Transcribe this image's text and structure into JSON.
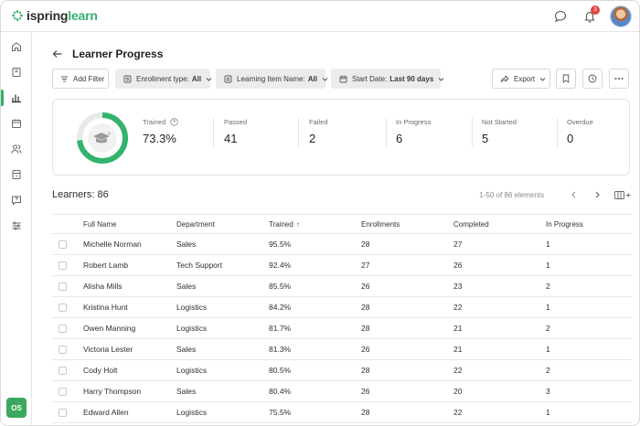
{
  "app": {
    "logo_part1": "ispring",
    "logo_part2": "learn",
    "notification_count": "3",
    "user_initials": "OS"
  },
  "page": {
    "title": "Learner Progress"
  },
  "filters": {
    "add_filter": "Add Filter",
    "enrollment_label": "Enrollment type:",
    "enrollment_value": "All",
    "learning_item_label": "Learning Item Name:",
    "learning_item_value": "All",
    "start_date_label": "Start Date:",
    "start_date_value": "Last 90 days",
    "export_label": "Export"
  },
  "stats": {
    "trained_label": "Trained",
    "trained_value": "73.3%",
    "trained_fraction": 0.733,
    "passed_label": "Passed",
    "passed_value": "41",
    "failed_label": "Failed",
    "failed_value": "2",
    "in_progress_label": "In Progress",
    "in_progress_value": "6",
    "not_started_label": "Not Started",
    "not_started_value": "5",
    "overdue_label": "Overdue",
    "overdue_value": "0"
  },
  "learners": {
    "title": "Learners: 86",
    "pagination": "1-50 of 86 elements"
  },
  "table": {
    "columns": [
      "Full Name",
      "Department",
      "Trained",
      "Enrollments",
      "Completed",
      "In Progress"
    ],
    "sort_indicator": "↑",
    "rows": [
      [
        "Michelle Norman",
        "Sales",
        "95.5%",
        "28",
        "27",
        "1"
      ],
      [
        "Robert Lamb",
        "Tech Support",
        "92.4%",
        "27",
        "26",
        "1"
      ],
      [
        "Alisha Mills",
        "Sales",
        "85.5%",
        "26",
        "23",
        "2"
      ],
      [
        "Kristina Hunt",
        "Logistics",
        "84.2%",
        "28",
        "22",
        "1"
      ],
      [
        "Owen Manning",
        "Logistics",
        "81.7%",
        "28",
        "21",
        "2"
      ],
      [
        "Victoria Lester",
        "Sales",
        "81.3%",
        "26",
        "21",
        "1"
      ],
      [
        "Cody Holt",
        "Logistics",
        "80.5%",
        "28",
        "22",
        "2"
      ],
      [
        "Harry Thompson",
        "Sales",
        "80.4%",
        "26",
        "20",
        "3"
      ],
      [
        "Edward Allen",
        "Logistics",
        "75.5%",
        "28",
        "22",
        "1"
      ]
    ]
  },
  "colors": {
    "accent": "#33b36b",
    "badge": "#e0463c",
    "donut_track": "#e9e9e9"
  }
}
